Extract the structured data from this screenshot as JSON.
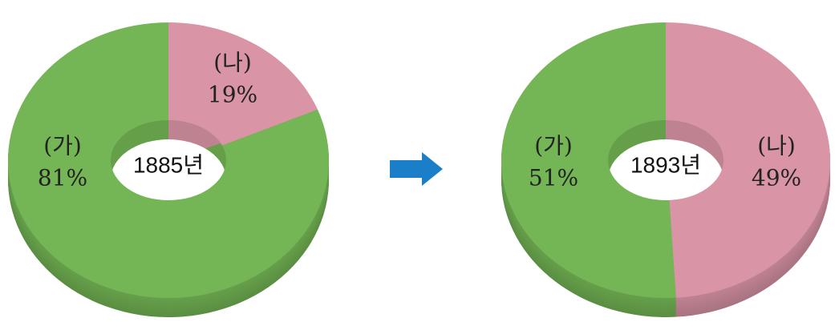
{
  "chart_data": [
    {
      "type": "donut",
      "title": "1885년",
      "categories": [
        "(가)",
        "(나)"
      ],
      "values": [
        81,
        19
      ],
      "value_labels": [
        "81%",
        "19%"
      ],
      "colors": [
        "#74b655",
        "#d994a6"
      ]
    },
    {
      "type": "donut",
      "title": "1893년",
      "categories": [
        "(가)",
        "(나)"
      ],
      "values": [
        51,
        49
      ],
      "value_labels": [
        "51%",
        "49%"
      ],
      "colors": [
        "#74b655",
        "#d994a6"
      ]
    }
  ]
}
